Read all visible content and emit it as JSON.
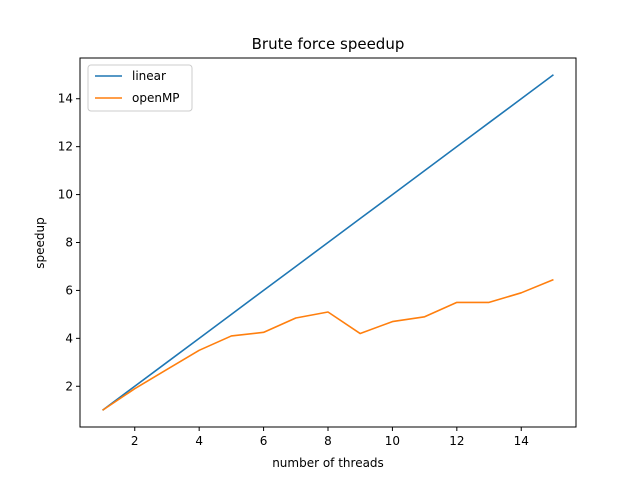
{
  "chart_data": {
    "type": "line",
    "title": "Brute force speedup",
    "xlabel": "number of threads",
    "ylabel": "speedup",
    "xlim": [
      0.3,
      15.7
    ],
    "ylim": [
      0.3,
      15.7
    ],
    "xticks": [
      2,
      4,
      6,
      8,
      10,
      12,
      14
    ],
    "yticks": [
      2,
      4,
      6,
      8,
      10,
      12,
      14
    ],
    "grid": false,
    "legend_position": "top-left",
    "x": [
      1,
      2,
      3,
      4,
      5,
      6,
      7,
      8,
      9,
      10,
      11,
      12,
      13,
      14,
      15
    ],
    "series": [
      {
        "name": "linear",
        "color": "#1f77b4",
        "values": [
          1,
          2,
          3,
          4,
          5,
          6,
          7,
          8,
          9,
          10,
          11,
          12,
          13,
          14,
          15
        ]
      },
      {
        "name": "openMP",
        "color": "#ff7f0e",
        "values": [
          1.0,
          1.9,
          2.7,
          3.5,
          4.1,
          4.25,
          4.85,
          5.1,
          4.2,
          4.7,
          4.9,
          5.5,
          5.5,
          5.9,
          6.45
        ]
      }
    ]
  }
}
